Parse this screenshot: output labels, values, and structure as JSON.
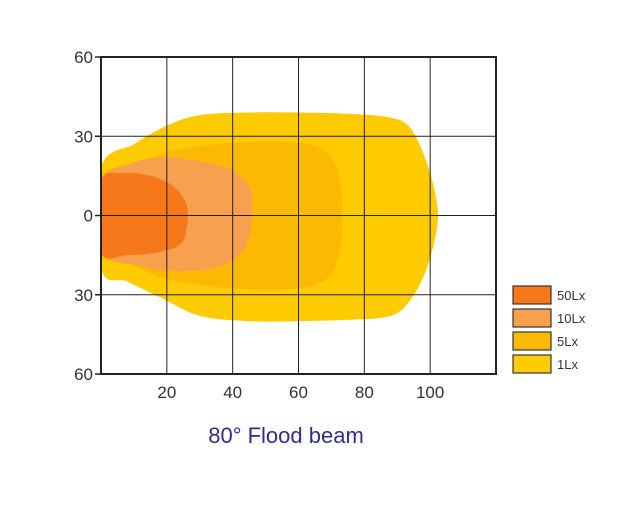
{
  "chart_data": {
    "type": "area",
    "title": "80° Flood beam",
    "xlabel": "",
    "ylabel": "",
    "xlim": [
      0,
      120
    ],
    "ylim": [
      -60,
      60
    ],
    "x_ticks": [
      {
        "value": 20,
        "label": "20"
      },
      {
        "value": 40,
        "label": "40"
      },
      {
        "value": 60,
        "label": "60"
      },
      {
        "value": 80,
        "label": "80"
      },
      {
        "value": 100,
        "label": "100"
      }
    ],
    "y_ticks": [
      {
        "value": 60,
        "label": "60"
      },
      {
        "value": 30,
        "label": "30"
      },
      {
        "value": 0,
        "label": "0"
      },
      {
        "value": -30,
        "label": "30"
      },
      {
        "value": -60,
        "label": "60"
      }
    ],
    "grid": true,
    "legend_position": "right",
    "series": [
      {
        "name": "1Lx",
        "color": "#fecb00",
        "points": [
          [
            0,
            18
          ],
          [
            10,
            27
          ],
          [
            20,
            34
          ],
          [
            30,
            38
          ],
          [
            45,
            39
          ],
          [
            60,
            39
          ],
          [
            75,
            38.5
          ],
          [
            88,
            37
          ],
          [
            94,
            33
          ],
          [
            99,
            20
          ],
          [
            102,
            5
          ],
          [
            102,
            -5
          ],
          [
            99,
            -20
          ],
          [
            94,
            -32
          ],
          [
            88,
            -38
          ],
          [
            75,
            -39.5
          ],
          [
            60,
            -40
          ],
          [
            45,
            -40
          ],
          [
            30,
            -38
          ],
          [
            18,
            -31
          ],
          [
            8,
            -25
          ],
          [
            0,
            -20
          ]
        ]
      },
      {
        "name": "5Lx",
        "color": "#fcb901",
        "points": [
          [
            0,
            14
          ],
          [
            10,
            19
          ],
          [
            20,
            24
          ],
          [
            35,
            27
          ],
          [
            50,
            28
          ],
          [
            63,
            27
          ],
          [
            70,
            22
          ],
          [
            73,
            10
          ],
          [
            73,
            -10
          ],
          [
            70,
            -22
          ],
          [
            63,
            -27
          ],
          [
            50,
            -28
          ],
          [
            35,
            -27
          ],
          [
            20,
            -24
          ],
          [
            10,
            -19
          ],
          [
            0,
            -14
          ]
        ]
      },
      {
        "name": "10Lx",
        "color": "#f8a04e",
        "points": [
          [
            0,
            13
          ],
          [
            10,
            20
          ],
          [
            20,
            22
          ],
          [
            32,
            20
          ],
          [
            40,
            17
          ],
          [
            45,
            11
          ],
          [
            46,
            3
          ],
          [
            45,
            -8
          ],
          [
            42,
            -15
          ],
          [
            34,
            -20
          ],
          [
            22,
            -21
          ],
          [
            12,
            -19
          ],
          [
            0,
            -13
          ]
        ]
      },
      {
        "name": "50Lx",
        "color": "#f6781b",
        "points": [
          [
            0,
            13
          ],
          [
            7,
            16
          ],
          [
            15,
            15
          ],
          [
            22,
            11
          ],
          [
            26,
            4
          ],
          [
            26,
            -5
          ],
          [
            24,
            -11
          ],
          [
            17,
            -14
          ],
          [
            8,
            -15
          ],
          [
            0,
            -14
          ]
        ]
      }
    ],
    "legend_order": [
      "50Lx",
      "10Lx",
      "5Lx",
      "1Lx"
    ]
  }
}
